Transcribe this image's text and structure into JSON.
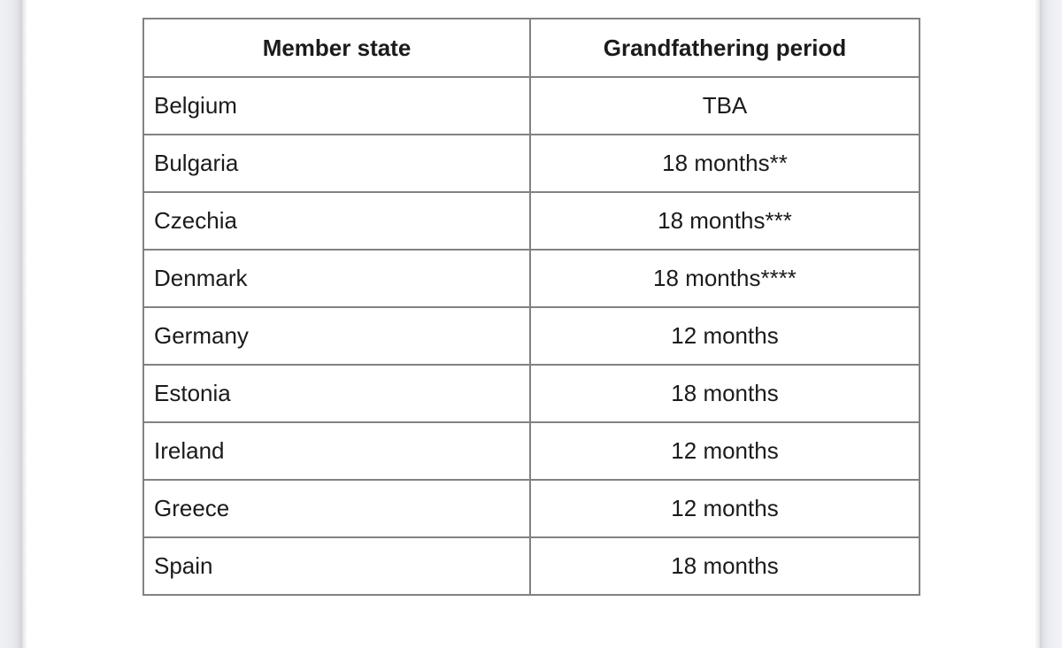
{
  "viewer": {
    "page_background": "#ffffff",
    "gutter_color": "#edeef3",
    "gutter_shadow_color": "#d0d1d7",
    "table_outer_border_color": "#454545",
    "table_inner_border_color": "#828282",
    "text_color": "#1b1b1b"
  },
  "table": {
    "headers": [
      "Member state",
      "Grandfathering period"
    ],
    "rows": [
      {
        "state": "Belgium",
        "period": "TBA"
      },
      {
        "state": "Bulgaria",
        "period": "18 months**"
      },
      {
        "state": "Czechia",
        "period": "18 months***"
      },
      {
        "state": "Denmark",
        "period": "18 months****"
      },
      {
        "state": "Germany",
        "period": "12 months"
      },
      {
        "state": "Estonia",
        "period": "18 months"
      },
      {
        "state": "Ireland",
        "period": "12 months"
      },
      {
        "state": "Greece",
        "period": "12 months"
      },
      {
        "state": "Spain",
        "period": "18 months"
      }
    ]
  }
}
